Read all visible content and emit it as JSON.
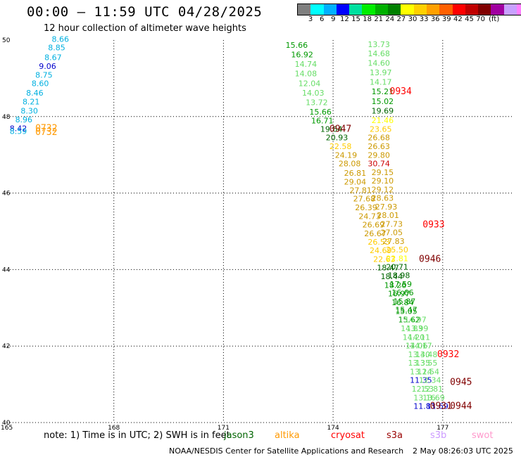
{
  "header": {
    "title": "00:00 – 11:59 UTC 04/28/2025",
    "subtitle": "12 hour collection of altimeter wave heights"
  },
  "colorbar": {
    "colors": [
      "#7f7f7f",
      "#00ffff",
      "#00b0ff",
      "#0000ff",
      "#00e0a0",
      "#00ee00",
      "#00b000",
      "#008000",
      "#ffff00",
      "#ffd000",
      "#ffa000",
      "#ff6000",
      "#ff0000",
      "#c00000",
      "#800000",
      "#a000a0",
      "#c8a0ff",
      "#ff80ff",
      "#000000"
    ],
    "labels": [
      "3",
      "6",
      "9",
      "12",
      "15",
      "18",
      "21",
      "24",
      "27",
      "30",
      "33",
      "36",
      "39",
      "42",
      "45",
      "70",
      "(ft)"
    ]
  },
  "map": {
    "lon_range": [
      165,
      179
    ],
    "lat_range": [
      40,
      50
    ],
    "lon_labels": [
      "165",
      "168",
      "171",
      "174",
      "177"
    ],
    "lon_ticks": [
      165,
      168,
      171,
      174,
      177
    ],
    "lat_labels": [
      "50",
      "48",
      "46",
      "44",
      "42",
      "40"
    ],
    "lat_ticks": [
      50,
      48,
      46,
      44,
      42,
      40
    ],
    "satellite_colors": {
      "jason3": "#006400",
      "altika": "#ff9900",
      "cryosat": "#ff0000",
      "s3a": "#990000",
      "s3b": "#cc99ff",
      "swot": "#ff99cc"
    },
    "track_west": {
      "points": [
        {
          "lon": 166.3,
          "lat": 49.95,
          "v": "8.66",
          "c": "#00b0e0"
        },
        {
          "lon": 166.2,
          "lat": 49.73,
          "v": "8.85",
          "c": "#00b0e0"
        },
        {
          "lon": 166.1,
          "lat": 49.48,
          "v": "8.67",
          "c": "#00b0e0"
        },
        {
          "lon": 165.95,
          "lat": 49.25,
          "v": "9.06",
          "c": "#0000cc"
        },
        {
          "lon": 165.85,
          "lat": 49.02,
          "v": "8.75",
          "c": "#00b0e0"
        },
        {
          "lon": 165.75,
          "lat": 48.8,
          "v": "8.60",
          "c": "#00b0e0"
        },
        {
          "lon": 165.6,
          "lat": 48.55,
          "v": "8.46",
          "c": "#00b0e0"
        },
        {
          "lon": 165.5,
          "lat": 48.32,
          "v": "8.21",
          "c": "#00b0e0"
        },
        {
          "lon": 165.45,
          "lat": 48.08,
          "v": "8.30",
          "c": "#00b0e0"
        },
        {
          "lon": 165.3,
          "lat": 47.85,
          "v": "8.96",
          "c": "#00b0e0"
        },
        {
          "lon": 165.15,
          "lat": 47.62,
          "v": "8.42",
          "c": "#0000cc"
        },
        {
          "lon": 165.15,
          "lat": 47.55,
          "v": "8.59",
          "c": "#00b0e0"
        }
      ],
      "times": [
        {
          "lon": 165.85,
          "lat": 47.62,
          "v": "0732",
          "c": "#ff9900"
        },
        {
          "lon": 165.85,
          "lat": 47.52,
          "v": "0732",
          "c": "#ff9900"
        }
      ]
    },
    "track_east": {
      "points": [
        {
          "lon": 172.7,
          "lat": 49.8,
          "v": "15.66",
          "c": "#009900"
        },
        {
          "lon": 172.85,
          "lat": 49.55,
          "v": "16.92",
          "c": "#009900"
        },
        {
          "lon": 172.95,
          "lat": 49.3,
          "v": "14.74",
          "c": "#66dd66"
        },
        {
          "lon": 172.95,
          "lat": 49.05,
          "v": "14.08",
          "c": "#66dd66"
        },
        {
          "lon": 173.05,
          "lat": 48.8,
          "v": "12.04",
          "c": "#66dd66"
        },
        {
          "lon": 173.15,
          "lat": 48.55,
          "v": "14.03",
          "c": "#66dd66"
        },
        {
          "lon": 173.25,
          "lat": 48.3,
          "v": "13.72",
          "c": "#66dd66"
        },
        {
          "lon": 173.35,
          "lat": 48.05,
          "v": "15.66",
          "c": "#009900"
        },
        {
          "lon": 173.4,
          "lat": 47.82,
          "v": "16.71",
          "c": "#009900"
        },
        {
          "lon": 173.65,
          "lat": 47.6,
          "v": "19.64",
          "c": "#006600"
        },
        {
          "lon": 173.8,
          "lat": 47.38,
          "v": "20.93",
          "c": "#006600"
        },
        {
          "lon": 173.9,
          "lat": 47.15,
          "v": "22.58",
          "c": "#ffcc00"
        },
        {
          "lon": 174.05,
          "lat": 46.92,
          "v": "24.19",
          "c": "#cc9900"
        },
        {
          "lon": 174.15,
          "lat": 46.7,
          "v": "28.08",
          "c": "#cc9900"
        },
        {
          "lon": 174.3,
          "lat": 46.45,
          "v": "26.81",
          "c": "#cc9900"
        },
        {
          "lon": 174.3,
          "lat": 46.22,
          "v": "29.04",
          "c": "#cc9900"
        },
        {
          "lon": 174.45,
          "lat": 46.0,
          "v": "27.81",
          "c": "#cc9900"
        },
        {
          "lon": 174.55,
          "lat": 45.78,
          "v": "27.68",
          "c": "#cc9900"
        },
        {
          "lon": 174.6,
          "lat": 45.55,
          "v": "26.39",
          "c": "#cc9900"
        },
        {
          "lon": 174.7,
          "lat": 45.32,
          "v": "24.73",
          "c": "#cc9900"
        },
        {
          "lon": 174.8,
          "lat": 45.1,
          "v": "26.69",
          "c": "#cc9900"
        },
        {
          "lon": 174.85,
          "lat": 44.87,
          "v": "26.67",
          "c": "#cc9900"
        },
        {
          "lon": 174.95,
          "lat": 44.65,
          "v": "26.53",
          "c": "#ffcc00"
        },
        {
          "lon": 175.0,
          "lat": 44.43,
          "v": "24.69",
          "c": "#ffcc00"
        },
        {
          "lon": 175.1,
          "lat": 44.2,
          "v": "22.63",
          "c": "#ffcc00"
        },
        {
          "lon": 175.2,
          "lat": 43.98,
          "v": "18.47",
          "c": "#006600"
        },
        {
          "lon": 175.3,
          "lat": 43.75,
          "v": "18.44",
          "c": "#006600"
        },
        {
          "lon": 175.4,
          "lat": 43.52,
          "v": "18.26",
          "c": "#009900"
        },
        {
          "lon": 175.5,
          "lat": 43.3,
          "v": "16.97",
          "c": "#009900"
        },
        {
          "lon": 175.6,
          "lat": 43.07,
          "v": "16.84",
          "c": "#009900"
        },
        {
          "lon": 175.7,
          "lat": 42.84,
          "v": "15.05",
          "c": "#009900"
        },
        {
          "lon": 175.78,
          "lat": 42.62,
          "v": "15.62",
          "c": "#009900"
        },
        {
          "lon": 175.85,
          "lat": 42.39,
          "v": "14.83",
          "c": "#66dd66"
        },
        {
          "lon": 175.9,
          "lat": 42.16,
          "v": "14.20",
          "c": "#66dd66"
        },
        {
          "lon": 175.98,
          "lat": 41.94,
          "v": "14.06",
          "c": "#66dd66"
        },
        {
          "lon": 176.05,
          "lat": 41.71,
          "v": "13.40",
          "c": "#66dd66"
        },
        {
          "lon": 176.05,
          "lat": 41.49,
          "v": "13.35",
          "c": "#66dd66"
        },
        {
          "lon": 176.1,
          "lat": 41.26,
          "v": "13.14",
          "c": "#66dd66"
        },
        {
          "lon": 176.1,
          "lat": 41.04,
          "v": "11.35",
          "c": "#0000cc"
        },
        {
          "lon": 176.15,
          "lat": 40.81,
          "v": "12.53",
          "c": "#66dd66"
        },
        {
          "lon": 176.2,
          "lat": 40.58,
          "v": "13.16",
          "c": "#66dd66"
        },
        {
          "lon": 176.2,
          "lat": 40.36,
          "v": "11.83",
          "c": "#0000cc"
        },
        {
          "lon": 174.95,
          "lat": 49.82,
          "v": "13.73",
          "c": "#66dd66"
        },
        {
          "lon": 174.95,
          "lat": 49.58,
          "v": "14.68",
          "c": "#66dd66"
        },
        {
          "lon": 174.95,
          "lat": 49.33,
          "v": "14.60",
          "c": "#66dd66"
        },
        {
          "lon": 175.0,
          "lat": 49.08,
          "v": "13.97",
          "c": "#66dd66"
        },
        {
          "lon": 175.0,
          "lat": 48.83,
          "v": "14.17",
          "c": "#66dd66"
        },
        {
          "lon": 175.05,
          "lat": 48.58,
          "v": "15.21",
          "c": "#009900"
        },
        {
          "lon": 175.05,
          "lat": 48.33,
          "v": "15.02",
          "c": "#009900"
        },
        {
          "lon": 175.05,
          "lat": 48.08,
          "v": "19.69",
          "c": "#006600"
        },
        {
          "lon": 175.05,
          "lat": 47.83,
          "v": "21.46",
          "c": "#ffff00"
        },
        {
          "lon": 175.0,
          "lat": 47.6,
          "v": "23.65",
          "c": "#ffcc00"
        },
        {
          "lon": 174.95,
          "lat": 47.38,
          "v": "26.68",
          "c": "#cc9900"
        },
        {
          "lon": 174.95,
          "lat": 47.15,
          "v": "26.63",
          "c": "#cc9900"
        },
        {
          "lon": 174.95,
          "lat": 46.92,
          "v": "29.80",
          "c": "#cc9900"
        },
        {
          "lon": 174.95,
          "lat": 46.7,
          "v": "30.74",
          "c": "#cc0000"
        },
        {
          "lon": 175.05,
          "lat": 46.47,
          "v": "29.15",
          "c": "#cc9900"
        },
        {
          "lon": 175.05,
          "lat": 46.25,
          "v": "29.10",
          "c": "#cc9900"
        },
        {
          "lon": 175.05,
          "lat": 46.02,
          "v": "29.12",
          "c": "#cc9900"
        },
        {
          "lon": 175.05,
          "lat": 45.8,
          "v": "28.63",
          "c": "#cc9900"
        },
        {
          "lon": 175.15,
          "lat": 45.57,
          "v": "27.93",
          "c": "#cc9900"
        },
        {
          "lon": 175.2,
          "lat": 45.35,
          "v": "28.01",
          "c": "#cc9900"
        },
        {
          "lon": 175.3,
          "lat": 45.12,
          "v": "27.73",
          "c": "#cc9900"
        },
        {
          "lon": 175.3,
          "lat": 44.9,
          "v": "27.05",
          "c": "#cc9900"
        },
        {
          "lon": 175.35,
          "lat": 44.67,
          "v": "27.83",
          "c": "#cc9900"
        },
        {
          "lon": 175.45,
          "lat": 44.45,
          "v": "25.50",
          "c": "#ffcc00"
        },
        {
          "lon": 175.45,
          "lat": 44.22,
          "v": "22.81",
          "c": "#ffff00"
        },
        {
          "lon": 175.45,
          "lat": 44.0,
          "v": "20.71",
          "c": "#006600"
        },
        {
          "lon": 175.5,
          "lat": 43.78,
          "v": "18.98",
          "c": "#006600"
        },
        {
          "lon": 175.55,
          "lat": 43.55,
          "v": "17.59",
          "c": "#009900"
        },
        {
          "lon": 175.6,
          "lat": 43.33,
          "v": "16.66",
          "c": "#009900"
        },
        {
          "lon": 175.65,
          "lat": 43.1,
          "v": "15.87",
          "c": "#009900"
        },
        {
          "lon": 175.7,
          "lat": 42.88,
          "v": "15.47",
          "c": "#009900"
        },
        {
          "lon": 175.95,
          "lat": 42.62,
          "v": "14.97",
          "c": "#66dd66"
        },
        {
          "lon": 176.0,
          "lat": 42.39,
          "v": "13.99",
          "c": "#66dd66"
        },
        {
          "lon": 176.05,
          "lat": 42.16,
          "v": "14.11",
          "c": "#66dd66"
        },
        {
          "lon": 176.1,
          "lat": 41.94,
          "v": "14.17",
          "c": "#66dd66"
        },
        {
          "lon": 176.25,
          "lat": 41.71,
          "v": "13.48",
          "c": "#66dd66"
        },
        {
          "lon": 176.25,
          "lat": 41.49,
          "v": "13.55",
          "c": "#66dd66"
        },
        {
          "lon": 176.3,
          "lat": 41.26,
          "v": "12.54",
          "c": "#66dd66"
        },
        {
          "lon": 176.35,
          "lat": 41.04,
          "v": "12.34",
          "c": "#66dd66"
        },
        {
          "lon": 176.4,
          "lat": 40.81,
          "v": "12.81",
          "c": "#66dd66"
        },
        {
          "lon": 176.45,
          "lat": 40.58,
          "v": "13.69",
          "c": "#66dd66"
        },
        {
          "lon": 176.55,
          "lat": 40.36,
          "v": "11.69",
          "c": "#0000cc"
        }
      ],
      "times": [
        {
          "lon": 175.55,
          "lat": 48.58,
          "v": "0934",
          "c": "#ff0000"
        },
        {
          "lon": 173.9,
          "lat": 47.6,
          "v": "0947",
          "c": "#800000"
        },
        {
          "lon": 176.45,
          "lat": 45.1,
          "v": "0933",
          "c": "#ff0000"
        },
        {
          "lon": 176.35,
          "lat": 44.2,
          "v": "0946",
          "c": "#800000"
        },
        {
          "lon": 176.85,
          "lat": 41.71,
          "v": "0932",
          "c": "#ff0000"
        },
        {
          "lon": 177.2,
          "lat": 40.98,
          "v": "0945",
          "c": "#800000"
        },
        {
          "lon": 176.65,
          "lat": 40.36,
          "v": "0931",
          "c": "#800000"
        },
        {
          "lon": 177.2,
          "lat": 40.36,
          "v": "0944",
          "c": "#800000"
        }
      ]
    }
  },
  "footer": {
    "note": "note: 1) Time is in UTC; 2) SWH is in feet",
    "satellites": [
      {
        "name": "jason3",
        "color": "#006400"
      },
      {
        "name": "altika",
        "color": "#ff9900"
      },
      {
        "name": "cryosat",
        "color": "#ff0000"
      },
      {
        "name": "s3a",
        "color": "#990000"
      },
      {
        "name": "s3b",
        "color": "#cc99ff"
      },
      {
        "name": "swot",
        "color": "#ff99cc"
      }
    ],
    "credit": "NOAA/NESDIS Center for Satellite Applications and Research",
    "issued": "2 May 08:26:03 UTC 2025"
  }
}
